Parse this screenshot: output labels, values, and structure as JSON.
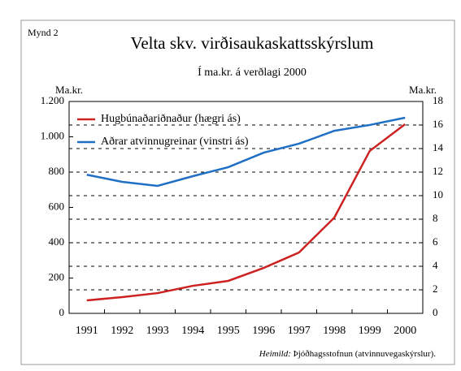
{
  "chart_data": {
    "type": "line",
    "figure_label": "Mynd 2",
    "title": "Velta skv. virðisaukaskattsskýrslum",
    "subtitle": "Í ma.kr. á verðlagi 2000",
    "y_label": "Ma.kr.",
    "y2_label": "Ma.kr.",
    "categories": [
      "1991",
      "1992",
      "1993",
      "1994",
      "1995",
      "1996",
      "1997",
      "1998",
      "1999",
      "2000"
    ],
    "series": [
      {
        "name": "Hugbúnaðariðnaður (hægri ás)",
        "color": "#cc2222",
        "axis": "y2",
        "values": [
          1.1,
          1.38,
          1.72,
          2.34,
          2.76,
          3.86,
          5.17,
          8.14,
          13.8,
          16.07
        ]
      },
      {
        "name": "Aðrar atvinnugreinar (vinstri ás)",
        "color": "#1f6fc5",
        "values": [
          785,
          745,
          722,
          777,
          828,
          910,
          961,
          1034,
          1067,
          1108
        ]
      }
    ],
    "ylim": [
      0,
      1200
    ],
    "yticks": [
      0,
      200,
      400,
      600,
      800,
      {
        "value": 1000,
        "label": "1.000"
      },
      {
        "value": 1200,
        "label": "1.200"
      }
    ],
    "y2lim": [
      0,
      18
    ],
    "y2ticks": [
      0,
      2,
      4,
      6,
      8,
      10,
      12,
      14,
      16,
      18
    ],
    "grid": true,
    "legend": "upper left",
    "note_label": "Heimild:",
    "note": "Þjóðhagsstofnun (atvinnuvegaskýrslur)."
  }
}
